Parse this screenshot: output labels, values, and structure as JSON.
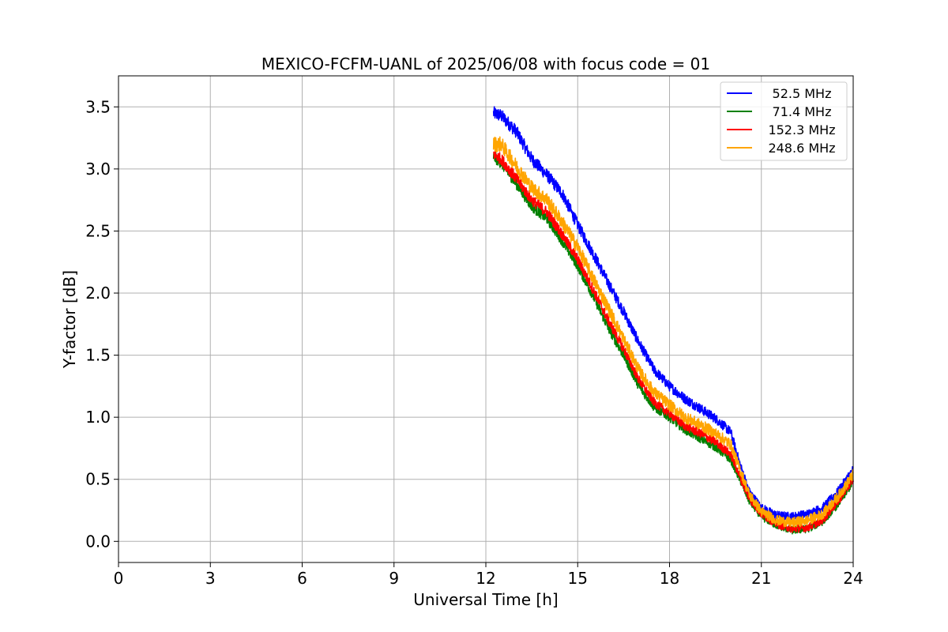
{
  "chart_data": {
    "type": "line",
    "title": "MEXICO-FCFM-UANL of 2025/06/08 with focus code = 01",
    "xlabel": "Universal Time [h]",
    "ylabel": "Y-factor [dB]",
    "xlim": [
      0,
      24
    ],
    "ylim": [
      -0.17,
      3.75
    ],
    "xticks": [
      0,
      3,
      6,
      9,
      12,
      15,
      18,
      21,
      24
    ],
    "yticks": [
      0.0,
      0.5,
      1.0,
      1.5,
      2.0,
      2.5,
      3.0,
      3.5
    ],
    "ytick_labels": [
      "0.0",
      "0.5",
      "1.0",
      "1.5",
      "2.0",
      "2.5",
      "3.0",
      "3.5"
    ],
    "grid": true,
    "legend_position": "top-right",
    "series": [
      {
        "name": "52.5 MHz",
        "color": "#0000ff",
        "noise": 0.055,
        "x": [
          12.25,
          12.5,
          13.0,
          13.5,
          14.0,
          14.5,
          15.0,
          15.5,
          16.0,
          16.5,
          17.0,
          17.5,
          18.0,
          18.5,
          19.0,
          19.5,
          20.0,
          20.3,
          20.6,
          21.0,
          21.5,
          22.0,
          22.5,
          23.0,
          23.5,
          24.0
        ],
        "y": [
          3.45,
          3.43,
          3.3,
          3.08,
          2.95,
          2.8,
          2.55,
          2.32,
          2.08,
          1.85,
          1.6,
          1.38,
          1.25,
          1.15,
          1.07,
          0.99,
          0.88,
          0.62,
          0.4,
          0.27,
          0.21,
          0.2,
          0.22,
          0.27,
          0.4,
          0.58
        ]
      },
      {
        "name": "71.4 MHz",
        "color": "#008000",
        "noise": 0.05,
        "x": [
          12.25,
          12.5,
          13.0,
          13.5,
          14.0,
          14.5,
          15.0,
          15.5,
          16.0,
          16.5,
          17.0,
          17.5,
          18.0,
          18.5,
          19.0,
          19.5,
          20.0,
          20.3,
          20.6,
          21.0,
          21.5,
          22.0,
          22.5,
          23.0,
          23.5,
          24.0
        ],
        "y": [
          3.1,
          3.05,
          2.88,
          2.7,
          2.6,
          2.42,
          2.22,
          1.98,
          1.72,
          1.5,
          1.25,
          1.08,
          1.0,
          0.9,
          0.83,
          0.76,
          0.66,
          0.5,
          0.33,
          0.2,
          0.13,
          0.09,
          0.1,
          0.16,
          0.3,
          0.48
        ]
      },
      {
        "name": "152.3 MHz",
        "color": "#ff0000",
        "noise": 0.05,
        "x": [
          12.25,
          12.5,
          13.0,
          13.5,
          14.0,
          14.5,
          15.0,
          15.5,
          16.0,
          16.5,
          17.0,
          17.5,
          18.0,
          18.5,
          19.0,
          19.5,
          20.0,
          20.3,
          20.6,
          21.0,
          21.5,
          22.0,
          22.5,
          23.0,
          23.5,
          24.0
        ],
        "y": [
          3.12,
          3.08,
          2.92,
          2.75,
          2.65,
          2.47,
          2.27,
          2.03,
          1.78,
          1.55,
          1.3,
          1.12,
          1.03,
          0.93,
          0.87,
          0.8,
          0.7,
          0.52,
          0.35,
          0.22,
          0.14,
          0.1,
          0.11,
          0.17,
          0.32,
          0.5
        ]
      },
      {
        "name": "248.6 MHz",
        "color": "#ffa500",
        "noise": 0.065,
        "x": [
          12.25,
          12.5,
          13.0,
          13.5,
          14.0,
          14.5,
          15.0,
          15.5,
          16.0,
          16.5,
          17.0,
          17.5,
          18.0,
          18.5,
          19.0,
          19.5,
          20.0,
          20.3,
          20.6,
          21.0,
          21.5,
          22.0,
          22.5,
          23.0,
          23.5,
          24.0
        ],
        "y": [
          3.2,
          3.2,
          3.02,
          2.85,
          2.75,
          2.57,
          2.37,
          2.12,
          1.88,
          1.63,
          1.38,
          1.2,
          1.1,
          1.0,
          0.94,
          0.87,
          0.78,
          0.58,
          0.38,
          0.24,
          0.17,
          0.15,
          0.17,
          0.22,
          0.36,
          0.54
        ]
      }
    ]
  }
}
